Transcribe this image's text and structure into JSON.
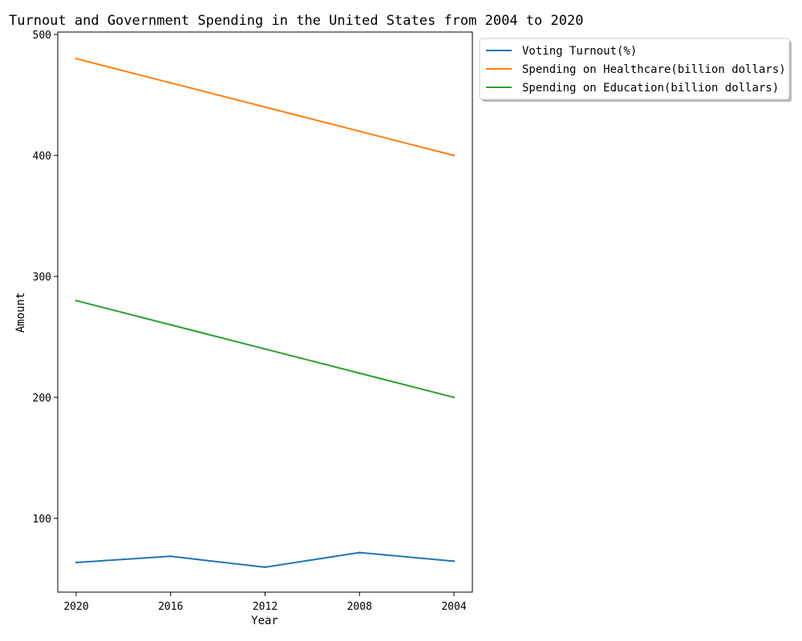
{
  "chart_data": {
    "type": "line",
    "title": "Turnout and Government Spending in the United States from 2004 to 2020",
    "xlabel": "Year",
    "ylabel": "Amount",
    "categories": [
      "2020",
      "2016",
      "2012",
      "2008",
      "2004"
    ],
    "ylim": [
      39,
      502
    ],
    "yticks": [
      100,
      200,
      300,
      400,
      500
    ],
    "series": [
      {
        "name": "Voting Turnout(%)",
        "color": "#1f77b4",
        "values": [
          63.5,
          68.6,
          59.6,
          71.7,
          64.6
        ]
      },
      {
        "name": "Spending on Healthcare(billion dollars)",
        "color": "#ff7f0e",
        "values": [
          480,
          460,
          440,
          420,
          400
        ]
      },
      {
        "name": "Spending on Education(billion dollars)",
        "color": "#2ca02c",
        "values": [
          280,
          260,
          240,
          220,
          200
        ]
      }
    ],
    "grid": false,
    "legend_position": "outside-upper-right"
  }
}
